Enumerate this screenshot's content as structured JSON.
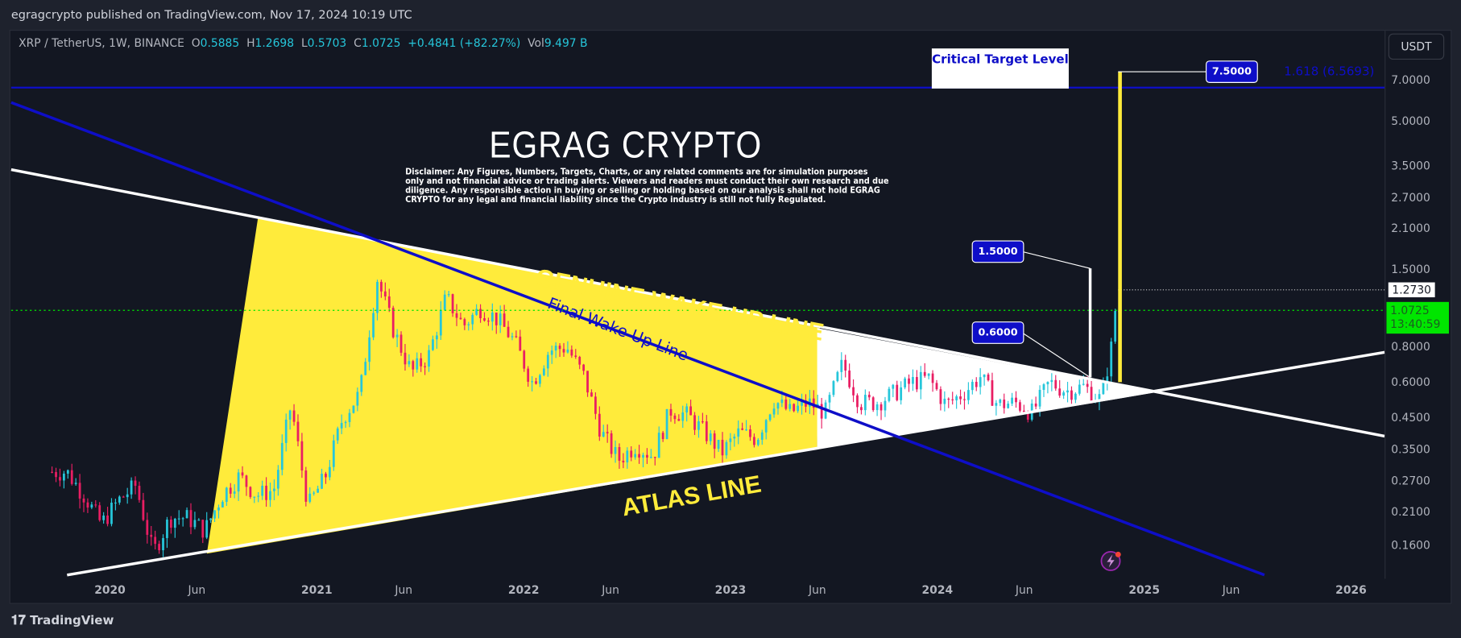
{
  "publisher_line": "egragcrypto published on TradingView.com, Nov 17, 2024 10:19 UTC",
  "legend": {
    "symbol": "XRP / TetherUS, 1W, BINANCE",
    "o_label": "O",
    "o": "0.5885",
    "h_label": "H",
    "h": "1.2698",
    "l_label": "L",
    "l": "0.5703",
    "c_label": "C",
    "c": "1.0725",
    "change": "+0.4841 (+82.27%)",
    "vol_label": "Vol",
    "vol": "9.497 B"
  },
  "currency": "USDT",
  "annotations": {
    "brand": "EGRAG CRYPTO",
    "disclaimer": "Disclaimer: Any Figures, Numbers, Targets, Charts, or any related comments are for simulation purposes only and not financial advice or trading alerts. Viewers and readers must conduct their own research and due diligence. Any responsible action in buying or selling or holding based on our analysis shall not hold EGRAG CRYPTO for any legal and financial liability since the Crypto industry is still not fully Regulated.",
    "critical_target": "Critical Target Level",
    "target_label": "7.5000",
    "mid_label": "1.5000",
    "low_label": "0.6000",
    "fib_label": "1.618 (6.5693)",
    "genuine_line": "GENUINE WAKE-UP LINE",
    "atlas_line": "ATLAS LINE",
    "final_line": "Final Wake Up Line"
  },
  "price_marks": {
    "high_line": "1.2730",
    "last_price": "1.0725",
    "countdown": "13:40:59"
  },
  "footer": "TradingView",
  "colors": {
    "up": "#26c6da",
    "down": "#e91e63",
    "yellow": "#ffeb3b",
    "blue": "#0e0ec8",
    "last": "#00e600"
  },
  "chart_data": {
    "type": "candlestick",
    "scale": "log",
    "y_ticks": [
      "7.0000",
      "5.0000",
      "3.5000",
      "2.7000",
      "2.1000",
      "1.5000",
      "0.8000",
      "0.6000",
      "0.4500",
      "0.3500",
      "0.2700",
      "0.2100",
      "0.1600"
    ],
    "x_ticks": [
      "2020",
      "Jun",
      "2021",
      "Jun",
      "2022",
      "Jun",
      "2023",
      "Jun",
      "2024",
      "Jun",
      "2025",
      "Jun",
      "2026"
    ],
    "ylim": [
      0.12,
      9
    ],
    "monthly_close": [
      [
        "2019-10",
        0.29
      ],
      [
        "2019-11",
        0.24
      ],
      [
        "2019-12",
        0.19
      ],
      [
        "2020-01",
        0.23
      ],
      [
        "2020-02",
        0.26
      ],
      [
        "2020-03",
        0.15
      ],
      [
        "2020-04",
        0.2
      ],
      [
        "2020-05",
        0.2
      ],
      [
        "2020-06",
        0.18
      ],
      [
        "2020-07",
        0.24
      ],
      [
        "2020-08",
        0.28
      ],
      [
        "2020-09",
        0.24
      ],
      [
        "2020-10",
        0.25
      ],
      [
        "2020-11",
        0.5
      ],
      [
        "2020-12",
        0.22
      ],
      [
        "2021-01",
        0.28
      ],
      [
        "2021-02",
        0.45
      ],
      [
        "2021-03",
        0.55
      ],
      [
        "2021-04",
        1.4
      ],
      [
        "2021-05",
        0.9
      ],
      [
        "2021-06",
        0.65
      ],
      [
        "2021-07",
        0.75
      ],
      [
        "2021-08",
        1.2
      ],
      [
        "2021-09",
        0.95
      ],
      [
        "2021-10",
        1.1
      ],
      [
        "2021-11",
        1.0
      ],
      [
        "2021-12",
        0.83
      ],
      [
        "2022-01",
        0.6
      ],
      [
        "2022-02",
        0.78
      ],
      [
        "2022-03",
        0.8
      ],
      [
        "2022-04",
        0.63
      ],
      [
        "2022-05",
        0.4
      ],
      [
        "2022-06",
        0.32
      ],
      [
        "2022-07",
        0.36
      ],
      [
        "2022-08",
        0.33
      ],
      [
        "2022-09",
        0.48
      ],
      [
        "2022-10",
        0.46
      ],
      [
        "2022-11",
        0.4
      ],
      [
        "2022-12",
        0.34
      ],
      [
        "2023-01",
        0.4
      ],
      [
        "2023-02",
        0.38
      ],
      [
        "2023-03",
        0.52
      ],
      [
        "2023-04",
        0.47
      ],
      [
        "2023-05",
        0.51
      ],
      [
        "2023-06",
        0.47
      ],
      [
        "2023-07",
        0.7
      ],
      [
        "2023-08",
        0.51
      ],
      [
        "2023-09",
        0.51
      ],
      [
        "2023-10",
        0.55
      ],
      [
        "2023-11",
        0.6
      ],
      [
        "2023-12",
        0.62
      ],
      [
        "2024-01",
        0.5
      ],
      [
        "2024-02",
        0.55
      ],
      [
        "2024-03",
        0.63
      ],
      [
        "2024-04",
        0.5
      ],
      [
        "2024-05",
        0.51
      ],
      [
        "2024-06",
        0.47
      ],
      [
        "2024-07",
        0.6
      ],
      [
        "2024-08",
        0.56
      ],
      [
        "2024-09",
        0.58
      ],
      [
        "2024-10",
        0.52
      ],
      [
        "2024-11",
        1.0725
      ]
    ]
  }
}
